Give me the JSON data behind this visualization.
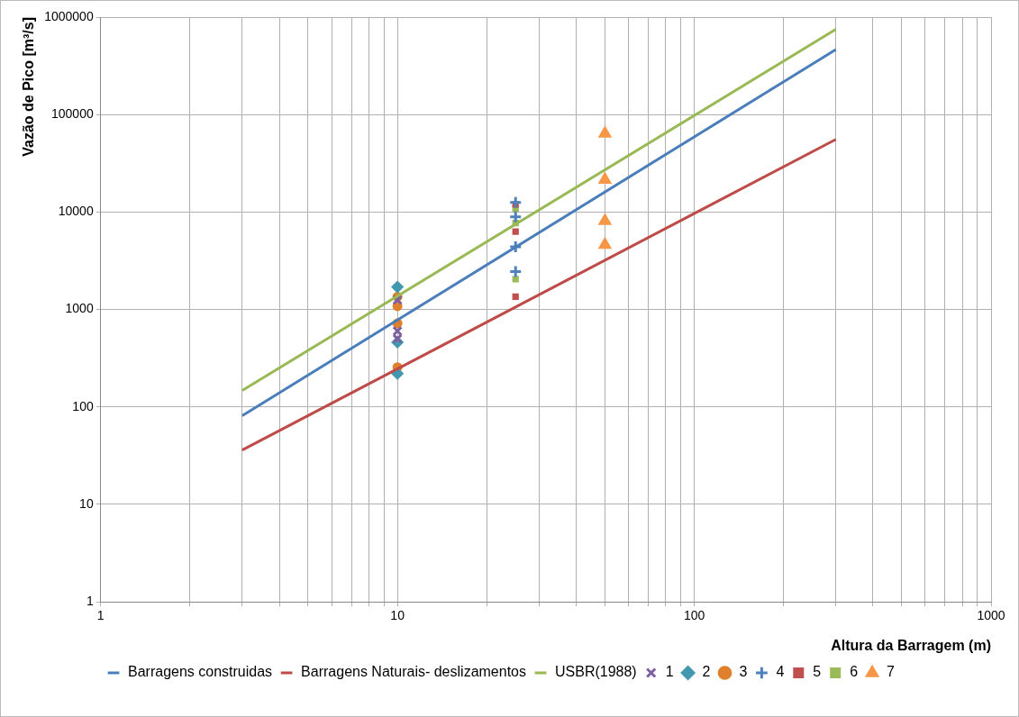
{
  "chart_data": {
    "type": "line",
    "xlabel": "Altura da Barragem (m)",
    "ylabel": "Vazão de Pico [m³/s]",
    "log": "xy",
    "grid": true,
    "legend": "bottom",
    "xlim": [
      1,
      1000
    ],
    "ylim": [
      1,
      1000000
    ],
    "xticks": [
      1,
      {
        "value": 2,
        "label": null
      },
      {
        "value": 3,
        "label": null
      },
      {
        "value": 4,
        "label": null
      },
      {
        "value": 5,
        "label": null
      },
      {
        "value": 6,
        "label": null
      },
      {
        "value": 7,
        "label": null
      },
      {
        "value": 8,
        "label": null
      },
      {
        "value": 9,
        "label": null
      },
      10,
      {
        "value": 20,
        "label": null
      },
      {
        "value": 30,
        "label": null
      },
      {
        "value": 40,
        "label": null
      },
      {
        "value": 50,
        "label": null
      },
      {
        "value": 60,
        "label": null
      },
      {
        "value": 70,
        "label": null
      },
      {
        "value": 80,
        "label": null
      },
      {
        "value": 90,
        "label": null
      },
      100,
      {
        "value": 200,
        "label": null
      },
      {
        "value": 300,
        "label": null
      },
      {
        "value": 400,
        "label": null
      },
      {
        "value": 500,
        "label": null
      },
      {
        "value": 600,
        "label": null
      },
      {
        "value": 700,
        "label": null
      },
      {
        "value": 800,
        "label": null
      },
      {
        "value": 900,
        "label": null
      },
      1000
    ],
    "yticks": [
      1,
      10,
      100,
      1000,
      10000,
      100000,
      1000000
    ],
    "series": [
      {
        "name": "Barragens construidas",
        "color": "#4a7ebb",
        "marker": "none",
        "x": [
          3,
          300
        ],
        "values": [
          81,
          465000
        ]
      },
      {
        "name": "Barragens Naturais- deslizamentos",
        "color": "#be4b48",
        "marker": "none",
        "x": [
          3,
          300
        ],
        "values": [
          36,
          55600
        ]
      },
      {
        "name": "USBR(1988)",
        "color": "#98b954",
        "marker": "none",
        "x": [
          3,
          300
        ],
        "values": [
          147,
          750000
        ]
      },
      {
        "name": "1",
        "type": "scatter",
        "color": "#7d60a0",
        "marker": "x",
        "x": [
          10,
          10,
          10
        ],
        "values": [
          1250,
          600,
          500
        ]
      },
      {
        "name": "2",
        "type": "scatter",
        "color": "#4198af",
        "marker": "diamond",
        "x": [
          10,
          10,
          10
        ],
        "values": [
          1700,
          460,
          220
        ]
      },
      {
        "name": "3",
        "type": "scatter",
        "color": "#e0802c",
        "marker": "circle",
        "x": [
          10,
          10,
          10,
          10
        ],
        "values": [
          1350,
          1080,
          720,
          255
        ]
      },
      {
        "name": "4",
        "type": "scatter",
        "color": "#4f81bd",
        "marker": "cross",
        "x": [
          25,
          25,
          25,
          25
        ],
        "values": [
          12500,
          8900,
          4400,
          2450
        ]
      },
      {
        "name": "5",
        "type": "scatter",
        "color": "#c0504d",
        "marker": "square",
        "x": [
          25,
          25,
          25
        ],
        "values": [
          12000,
          6300,
          1350
        ]
      },
      {
        "name": "6",
        "type": "scatter",
        "color": "#9bbb59",
        "marker": "square",
        "x": [
          25,
          25,
          25
        ],
        "values": [
          10800,
          7700,
          2050
        ]
      },
      {
        "name": "7",
        "type": "scatter",
        "color": "#f79646",
        "marker": "triangle",
        "x": [
          50,
          50,
          50,
          50
        ],
        "values": [
          64000,
          21500,
          8100,
          4600
        ]
      }
    ]
  }
}
